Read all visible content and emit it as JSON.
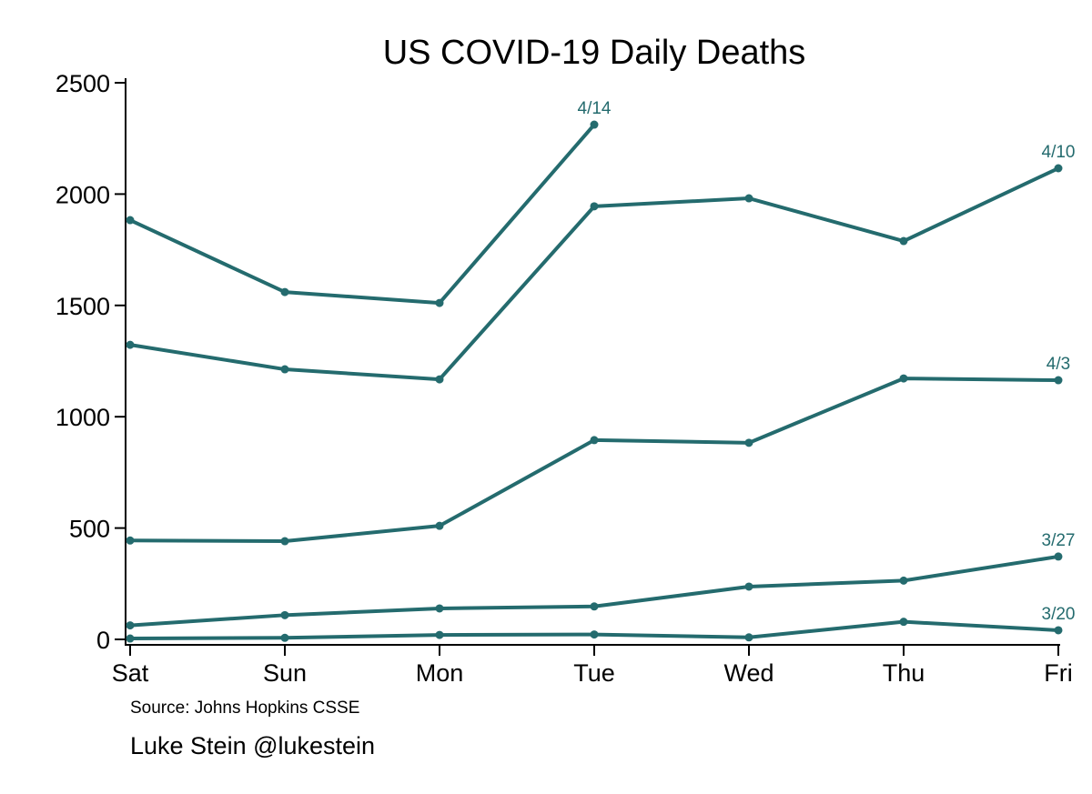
{
  "chart_data": {
    "type": "line",
    "title": "US COVID-19 Daily Deaths",
    "xlabel": "",
    "ylabel": "",
    "categories": [
      "Sat",
      "Sun",
      "Mon",
      "Tue",
      "Wed",
      "Thu",
      "Fri"
    ],
    "ylim": [
      0,
      2500
    ],
    "yticks": [
      0,
      500,
      1000,
      1500,
      2000,
      2500
    ],
    "grid": false,
    "legend": "none (series labeled at line ends)",
    "color": "#246b6e",
    "series": [
      {
        "name": "3/20",
        "values": [
          4,
          7,
          20,
          22,
          9,
          79,
          41
        ]
      },
      {
        "name": "3/27",
        "values": [
          63,
          109,
          139,
          148,
          237,
          264,
          372
        ]
      },
      {
        "name": "4/3",
        "values": [
          444,
          441,
          510,
          895,
          883,
          1172,
          1164
        ]
      },
      {
        "name": "4/10",
        "values": [
          1323,
          1213,
          1168,
          1945,
          1981,
          1789,
          2116
        ]
      },
      {
        "name": "4/14",
        "values": [
          1883,
          1560,
          1511,
          2312
        ]
      }
    ],
    "annotations": [
      "Source: Johns Hopkins CSSE",
      "Luke Stein @lukestein"
    ]
  },
  "notes": {
    "source": "Source: Johns Hopkins CSSE",
    "author": "Luke Stein @lukestein"
  }
}
